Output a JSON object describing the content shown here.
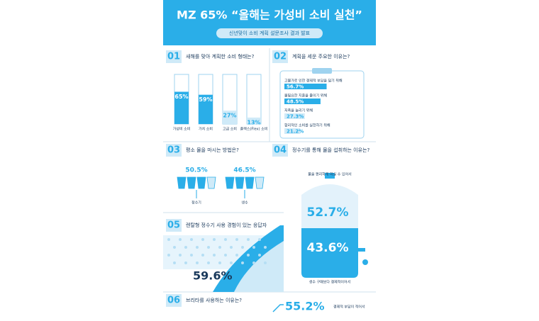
{
  "header": {
    "title": "MZ 65% “올해는 가성비 소비 실천”",
    "subtitle": "신년맞이 소비 계획 설문조사 결과 발표"
  },
  "q1": {
    "number": "01",
    "question": "새해를 맞아 계획한 소비 형태는?",
    "items": [
      {
        "label": "가성비 소비",
        "value": 65,
        "value_label": "65%"
      },
      {
        "label": "가치 소비",
        "value": 59,
        "value_label": "59%"
      },
      {
        "label": "고급 소비",
        "value": 27,
        "value_label": "27%"
      },
      {
        "label": "플렉스(Flex) 소비",
        "value": 13,
        "value_label": "13%"
      }
    ]
  },
  "q2": {
    "number": "02",
    "question": "계획을 세운 주요한 이유는?",
    "items": [
      {
        "label": "고물가로 인한 경제적 부담을 덜기 위해",
        "value": 56.7,
        "value_label": "56.7%"
      },
      {
        "label": "불필요한 지출을 줄이기 위해",
        "value": 48.5,
        "value_label": "48.5%"
      },
      {
        "label": "저축을 늘리기 위해",
        "value": 27.3,
        "value_label": "27.3%"
      },
      {
        "label": "합리적인 소비를 실천하기 위해",
        "value": 21.2,
        "value_label": "21.2%"
      }
    ]
  },
  "q3": {
    "number": "03",
    "question": "평소 물을 마시는 방법은?",
    "items": [
      {
        "label": "정수기",
        "value_label": "50.5%"
      },
      {
        "label": "생수",
        "value_label": "46.5%"
      }
    ]
  },
  "q4": {
    "number": "04",
    "question": "정수기를 통해 물을 섭취하는 이유는?",
    "top_label": "물을 편리하게 마실 수 있어서",
    "top_value": "52.7%",
    "bottom_value": "43.6%",
    "bottom_label": "생수 구매보다 경제적이어서"
  },
  "q5": {
    "number": "05",
    "question": "렌탈형 정수기 사용 경험이 있는 응답자",
    "value": "59.6%"
  },
  "q6": {
    "number": "06",
    "question": "브리타를 사용하는 이유는?",
    "value": "55.2%",
    "label": "경제적 부담이 적어서"
  }
}
